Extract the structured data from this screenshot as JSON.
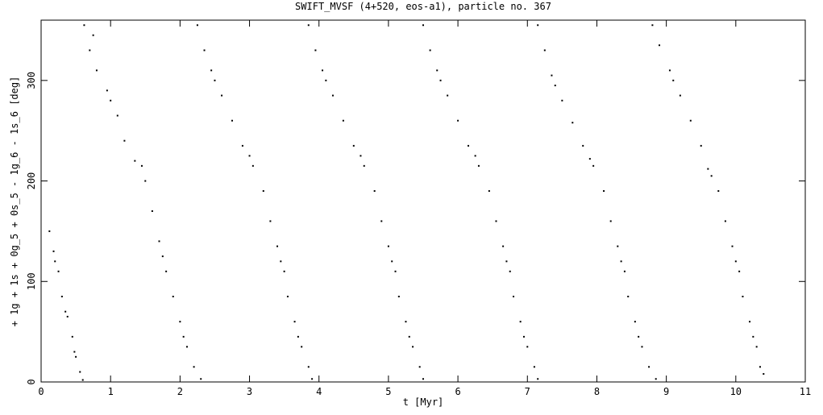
{
  "chart_data": {
    "type": "scatter",
    "title": "SWIFT_MVSF (4+520, eos-a1), particle no. 367",
    "x_label": "t [Myr]",
    "y_label": "+ 1g + 1s + 0g_5 + 0s_5 - 1g_6 - 1s_6 [deg]",
    "xlim": [
      0,
      11
    ],
    "ylim": [
      0,
      360
    ],
    "xticks": [
      0,
      1,
      2,
      3,
      4,
      5,
      6,
      7,
      8,
      9,
      10,
      11
    ],
    "yticks": [
      0,
      100,
      200,
      300
    ],
    "color": "#000000",
    "x": [
      0.12,
      0.18,
      0.25,
      0.3,
      0.38,
      0.45,
      0.5,
      0.56,
      0.6,
      0.2,
      0.35,
      0.48,
      0.62,
      0.7,
      0.8,
      0.95,
      1.1,
      1.2,
      1.35,
      1.5,
      1.6,
      1.7,
      1.8,
      1.9,
      2.0,
      2.1,
      2.2,
      2.3,
      0.75,
      1.0,
      1.45,
      1.75,
      2.05,
      2.25,
      2.35,
      2.45,
      2.6,
      2.75,
      2.9,
      3.05,
      3.2,
      3.3,
      3.4,
      3.5,
      3.55,
      3.65,
      3.75,
      3.85,
      3.9,
      2.5,
      3.0,
      3.45,
      3.7,
      3.85,
      3.95,
      4.05,
      4.2,
      4.35,
      4.5,
      4.65,
      4.8,
      4.9,
      5.0,
      5.1,
      5.15,
      5.25,
      5.35,
      5.45,
      5.5,
      4.1,
      4.6,
      5.05,
      5.3,
      5.5,
      5.6,
      5.7,
      5.85,
      6.0,
      6.15,
      6.3,
      6.45,
      6.55,
      6.65,
      6.75,
      6.8,
      6.9,
      7.0,
      7.1,
      7.15,
      5.75,
      6.25,
      6.7,
      6.95,
      7.15,
      7.25,
      7.35,
      7.5,
      7.65,
      7.8,
      7.95,
      8.1,
      8.2,
      8.3,
      8.4,
      8.45,
      8.55,
      8.65,
      8.75,
      8.85,
      7.4,
      7.9,
      8.35,
      8.6,
      8.8,
      8.9,
      9.05,
      9.2,
      9.35,
      9.5,
      9.6,
      9.75,
      9.85,
      9.95,
      10.05,
      10.1,
      10.2,
      10.3,
      10.35,
      10.4,
      9.1,
      9.65,
      10.0,
      10.25
    ],
    "y": [
      150,
      130,
      110,
      85,
      65,
      45,
      25,
      10,
      2,
      120,
      70,
      30,
      355,
      330,
      310,
      290,
      265,
      240,
      220,
      200,
      170,
      140,
      110,
      85,
      60,
      35,
      15,
      3,
      345,
      280,
      215,
      125,
      45,
      355,
      330,
      310,
      285,
      260,
      235,
      215,
      190,
      160,
      135,
      110,
      85,
      60,
      35,
      15,
      3,
      300,
      225,
      120,
      45,
      355,
      330,
      310,
      285,
      260,
      235,
      215,
      190,
      160,
      135,
      110,
      85,
      60,
      35,
      15,
      3,
      300,
      225,
      120,
      45,
      355,
      330,
      310,
      285,
      260,
      235,
      215,
      190,
      160,
      135,
      110,
      85,
      60,
      35,
      15,
      3,
      300,
      225,
      120,
      45,
      355,
      330,
      305,
      280,
      258,
      235,
      215,
      190,
      160,
      135,
      110,
      85,
      60,
      35,
      15,
      3,
      295,
      222,
      120,
      45,
      355,
      335,
      310,
      285,
      260,
      235,
      212,
      190,
      160,
      135,
      110,
      85,
      60,
      35,
      15,
      8,
      300,
      205,
      120,
      45
    ]
  }
}
